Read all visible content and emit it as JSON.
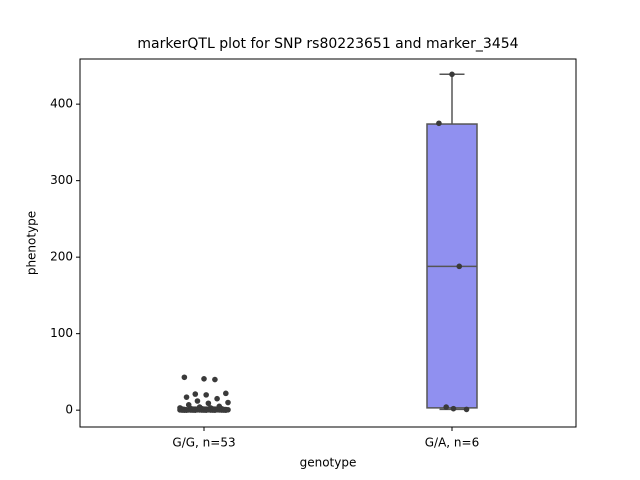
{
  "chart_data": {
    "type": "box",
    "title": "markerQTL plot for SNP rs80223651 and marker_3454",
    "x_label": "genotype",
    "y_label": "phenotype",
    "categories": [
      "G/G, n=53",
      "G/A, n=6"
    ],
    "box_color": "#9090f0",
    "edge_color": "#555555",
    "point_color": "#3a3a3a",
    "boxes": [
      {
        "whislo": 0,
        "q1": 0.2,
        "median": 0.5,
        "q3": 2,
        "whishi": 4
      },
      {
        "whislo": 1,
        "q1": 3,
        "median": 188,
        "q3": 374,
        "whishi": 439
      }
    ],
    "points": [
      [
        41,
        43,
        40,
        21,
        22,
        20,
        17,
        15,
        12,
        10,
        9,
        7,
        5,
        4,
        3,
        3,
        2,
        2,
        2,
        1.5,
        1.5,
        1,
        1,
        1,
        1,
        1,
        1,
        0.8,
        0.8,
        0.5,
        0.5,
        0.5,
        0.5,
        0.5,
        0.3,
        0.3,
        0.3,
        0.3,
        0.2,
        0.2,
        0.2,
        0.2,
        0.1,
        0.1,
        0.1,
        0.1,
        0.1,
        0,
        0,
        0,
        0,
        0,
        0
      ],
      [
        439,
        375,
        188,
        4,
        1,
        2
      ]
    ],
    "ylim": [
      -22,
      459
    ],
    "yticks": [
      0,
      100,
      200,
      300,
      400
    ]
  }
}
